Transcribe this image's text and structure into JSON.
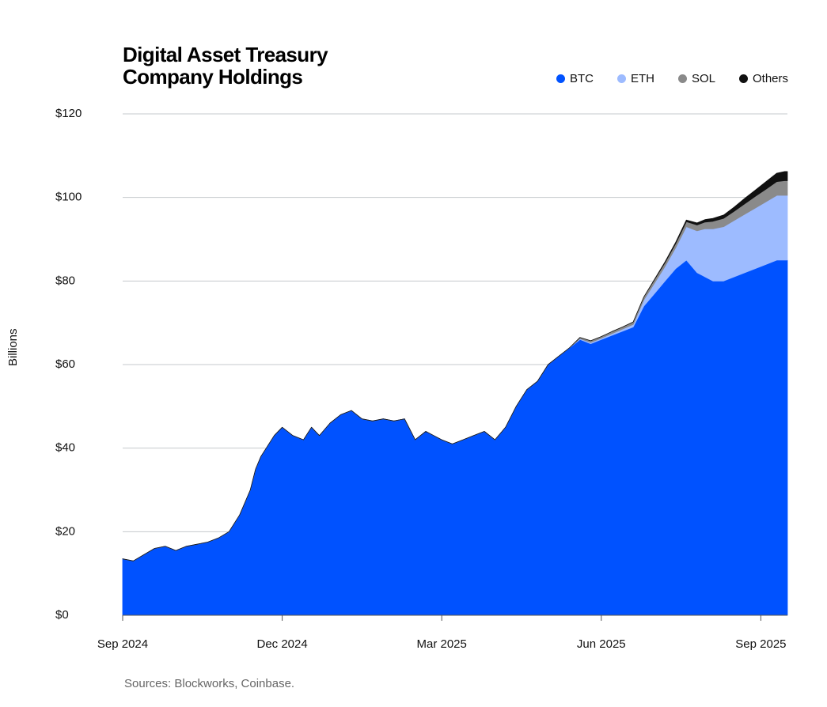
{
  "chart_data": {
    "type": "area",
    "stacked": true,
    "title_lines": [
      "Digital Asset Treasury",
      "Company Holdings"
    ],
    "ylabel": "Billions",
    "source": "Sources: Blockworks, Coinbase.",
    "ylim": [
      0,
      120
    ],
    "yticks": [
      {
        "value": 0,
        "label": "$0"
      },
      {
        "value": 20,
        "label": "$20"
      },
      {
        "value": 40,
        "label": "$40"
      },
      {
        "value": 60,
        "label": "$60"
      },
      {
        "value": 80,
        "label": "$80"
      },
      {
        "value": 100,
        "label": "$100"
      },
      {
        "value": 120,
        "label": "$120"
      }
    ],
    "xlim": [
      0,
      12.5
    ],
    "xticks": [
      {
        "value": 0,
        "label": "Sep 2024"
      },
      {
        "value": 3,
        "label": "Dec 2024"
      },
      {
        "value": 6,
        "label": "Mar 2025"
      },
      {
        "value": 9,
        "label": "Jun 2025"
      },
      {
        "value": 12,
        "label": "Sep 2025"
      }
    ],
    "grid": true,
    "legend_position": "top-right",
    "x": [
      0,
      0.2,
      0.4,
      0.6,
      0.8,
      1.0,
      1.2,
      1.4,
      1.6,
      1.8,
      2.0,
      2.2,
      2.4,
      2.5,
      2.6,
      2.7,
      2.85,
      3.0,
      3.2,
      3.4,
      3.55,
      3.7,
      3.9,
      4.1,
      4.3,
      4.5,
      4.7,
      4.9,
      5.1,
      5.3,
      5.5,
      5.7,
      5.85,
      6.0,
      6.2,
      6.4,
      6.6,
      6.8,
      7.0,
      7.2,
      7.4,
      7.6,
      7.8,
      8.0,
      8.2,
      8.4,
      8.6,
      8.8,
      9.0,
      9.2,
      9.4,
      9.6,
      9.8,
      10.0,
      10.2,
      10.4,
      10.6,
      10.8,
      10.95,
      11.1,
      11.3,
      11.5,
      11.7,
      11.9,
      12.1,
      12.3,
      12.45,
      12.5
    ],
    "series": [
      {
        "name": "BTC",
        "color": "#0052ff",
        "values": [
          13.5,
          13,
          14.5,
          16,
          16.5,
          15.5,
          16.5,
          17,
          17.5,
          18.5,
          20,
          24,
          30,
          35,
          38,
          40,
          43,
          45,
          43,
          42,
          45,
          43,
          46,
          48,
          49,
          47,
          46.5,
          47,
          46.5,
          47,
          42,
          44,
          43,
          42,
          41,
          42,
          43,
          44,
          42,
          45,
          50,
          54,
          56,
          60,
          62,
          64,
          66,
          65,
          66,
          67,
          68,
          69,
          74,
          77,
          80,
          83,
          85,
          82,
          81,
          80,
          80,
          81,
          82,
          83,
          84,
          85,
          85,
          85
        ]
      },
      {
        "name": "ETH",
        "color": "#9dbbff",
        "values": [
          0,
          0,
          0,
          0,
          0,
          0,
          0,
          0,
          0,
          0,
          0,
          0,
          0,
          0,
          0,
          0,
          0,
          0,
          0,
          0,
          0,
          0,
          0,
          0,
          0,
          0,
          0,
          0,
          0,
          0,
          0,
          0,
          0,
          0,
          0,
          0,
          0,
          0,
          0,
          0,
          0,
          0,
          0,
          0,
          0,
          0,
          0.2,
          0.3,
          0.3,
          0.4,
          0.5,
          0.6,
          1.5,
          2.5,
          3.5,
          5,
          8,
          10,
          11.5,
          12.5,
          13,
          13.5,
          14,
          14.5,
          15,
          15.5,
          15.5,
          15.5
        ]
      },
      {
        "name": "SOL",
        "color": "#8a8a8a",
        "values": [
          0,
          0,
          0,
          0,
          0,
          0,
          0,
          0,
          0,
          0,
          0,
          0,
          0,
          0,
          0,
          0,
          0,
          0,
          0,
          0,
          0,
          0,
          0,
          0,
          0,
          0,
          0,
          0,
          0,
          0,
          0,
          0,
          0,
          0,
          0,
          0,
          0,
          0,
          0,
          0,
          0,
          0,
          0,
          0,
          0,
          0,
          0.3,
          0.4,
          0.4,
          0.5,
          0.5,
          0.6,
          0.7,
          0.8,
          0.9,
          1.0,
          1.2,
          1.4,
          1.6,
          1.8,
          2.0,
          2.2,
          2.5,
          2.8,
          3.0,
          3.3,
          3.5,
          3.5
        ]
      },
      {
        "name": "Others",
        "color": "#111111",
        "values": [
          0,
          0,
          0,
          0,
          0,
          0,
          0,
          0,
          0,
          0,
          0,
          0,
          0,
          0,
          0,
          0,
          0,
          0,
          0,
          0,
          0,
          0,
          0,
          0,
          0,
          0,
          0,
          0,
          0,
          0,
          0,
          0,
          0,
          0,
          0,
          0,
          0,
          0,
          0,
          0,
          0,
          0,
          0,
          0,
          0,
          0,
          0,
          0,
          0,
          0,
          0,
          0,
          0,
          0.1,
          0.2,
          0.3,
          0.4,
          0.5,
          0.6,
          0.7,
          0.8,
          1.0,
          1.3,
          1.5,
          1.8,
          2.0,
          2.2,
          2.2
        ]
      }
    ]
  }
}
